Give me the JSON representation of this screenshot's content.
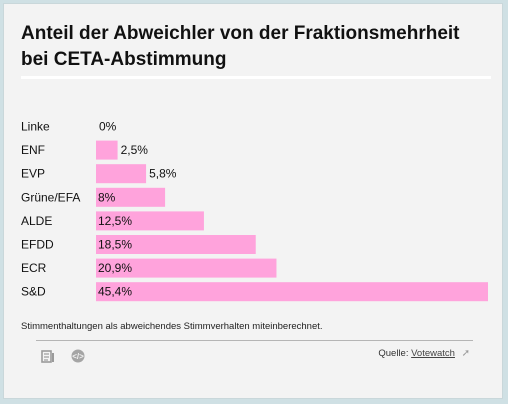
{
  "chart_data": {
    "type": "bar",
    "orientation": "horizontal",
    "title": "Anteil der Abweichler von der Fraktionsmehrheit bei CETA-Abstimmung",
    "categories": [
      "Linke",
      "ENF",
      "EVP",
      "Grüne/EFA",
      "ALDE",
      "EFDD",
      "ECR",
      "S&D"
    ],
    "values": [
      0,
      2.5,
      5.8,
      8,
      12.5,
      18.5,
      20.9,
      45.4
    ],
    "value_labels": [
      "0%",
      "2,5%",
      "5,8%",
      "8%",
      "12,5%",
      "18,5%",
      "20,9%",
      "45,4%"
    ],
    "xlim": [
      0,
      45.4
    ],
    "grid": false,
    "bar_color": "#ffa3dc"
  },
  "note": "Stimmenthaltungen als abweichendes Stimmverhalten miteinberechnet.",
  "source": {
    "label": "Quelle:",
    "link_text": "Votewatch"
  },
  "icons": {
    "document": "document-icon",
    "embed": "embed-code-icon",
    "external": "external-link-icon"
  }
}
